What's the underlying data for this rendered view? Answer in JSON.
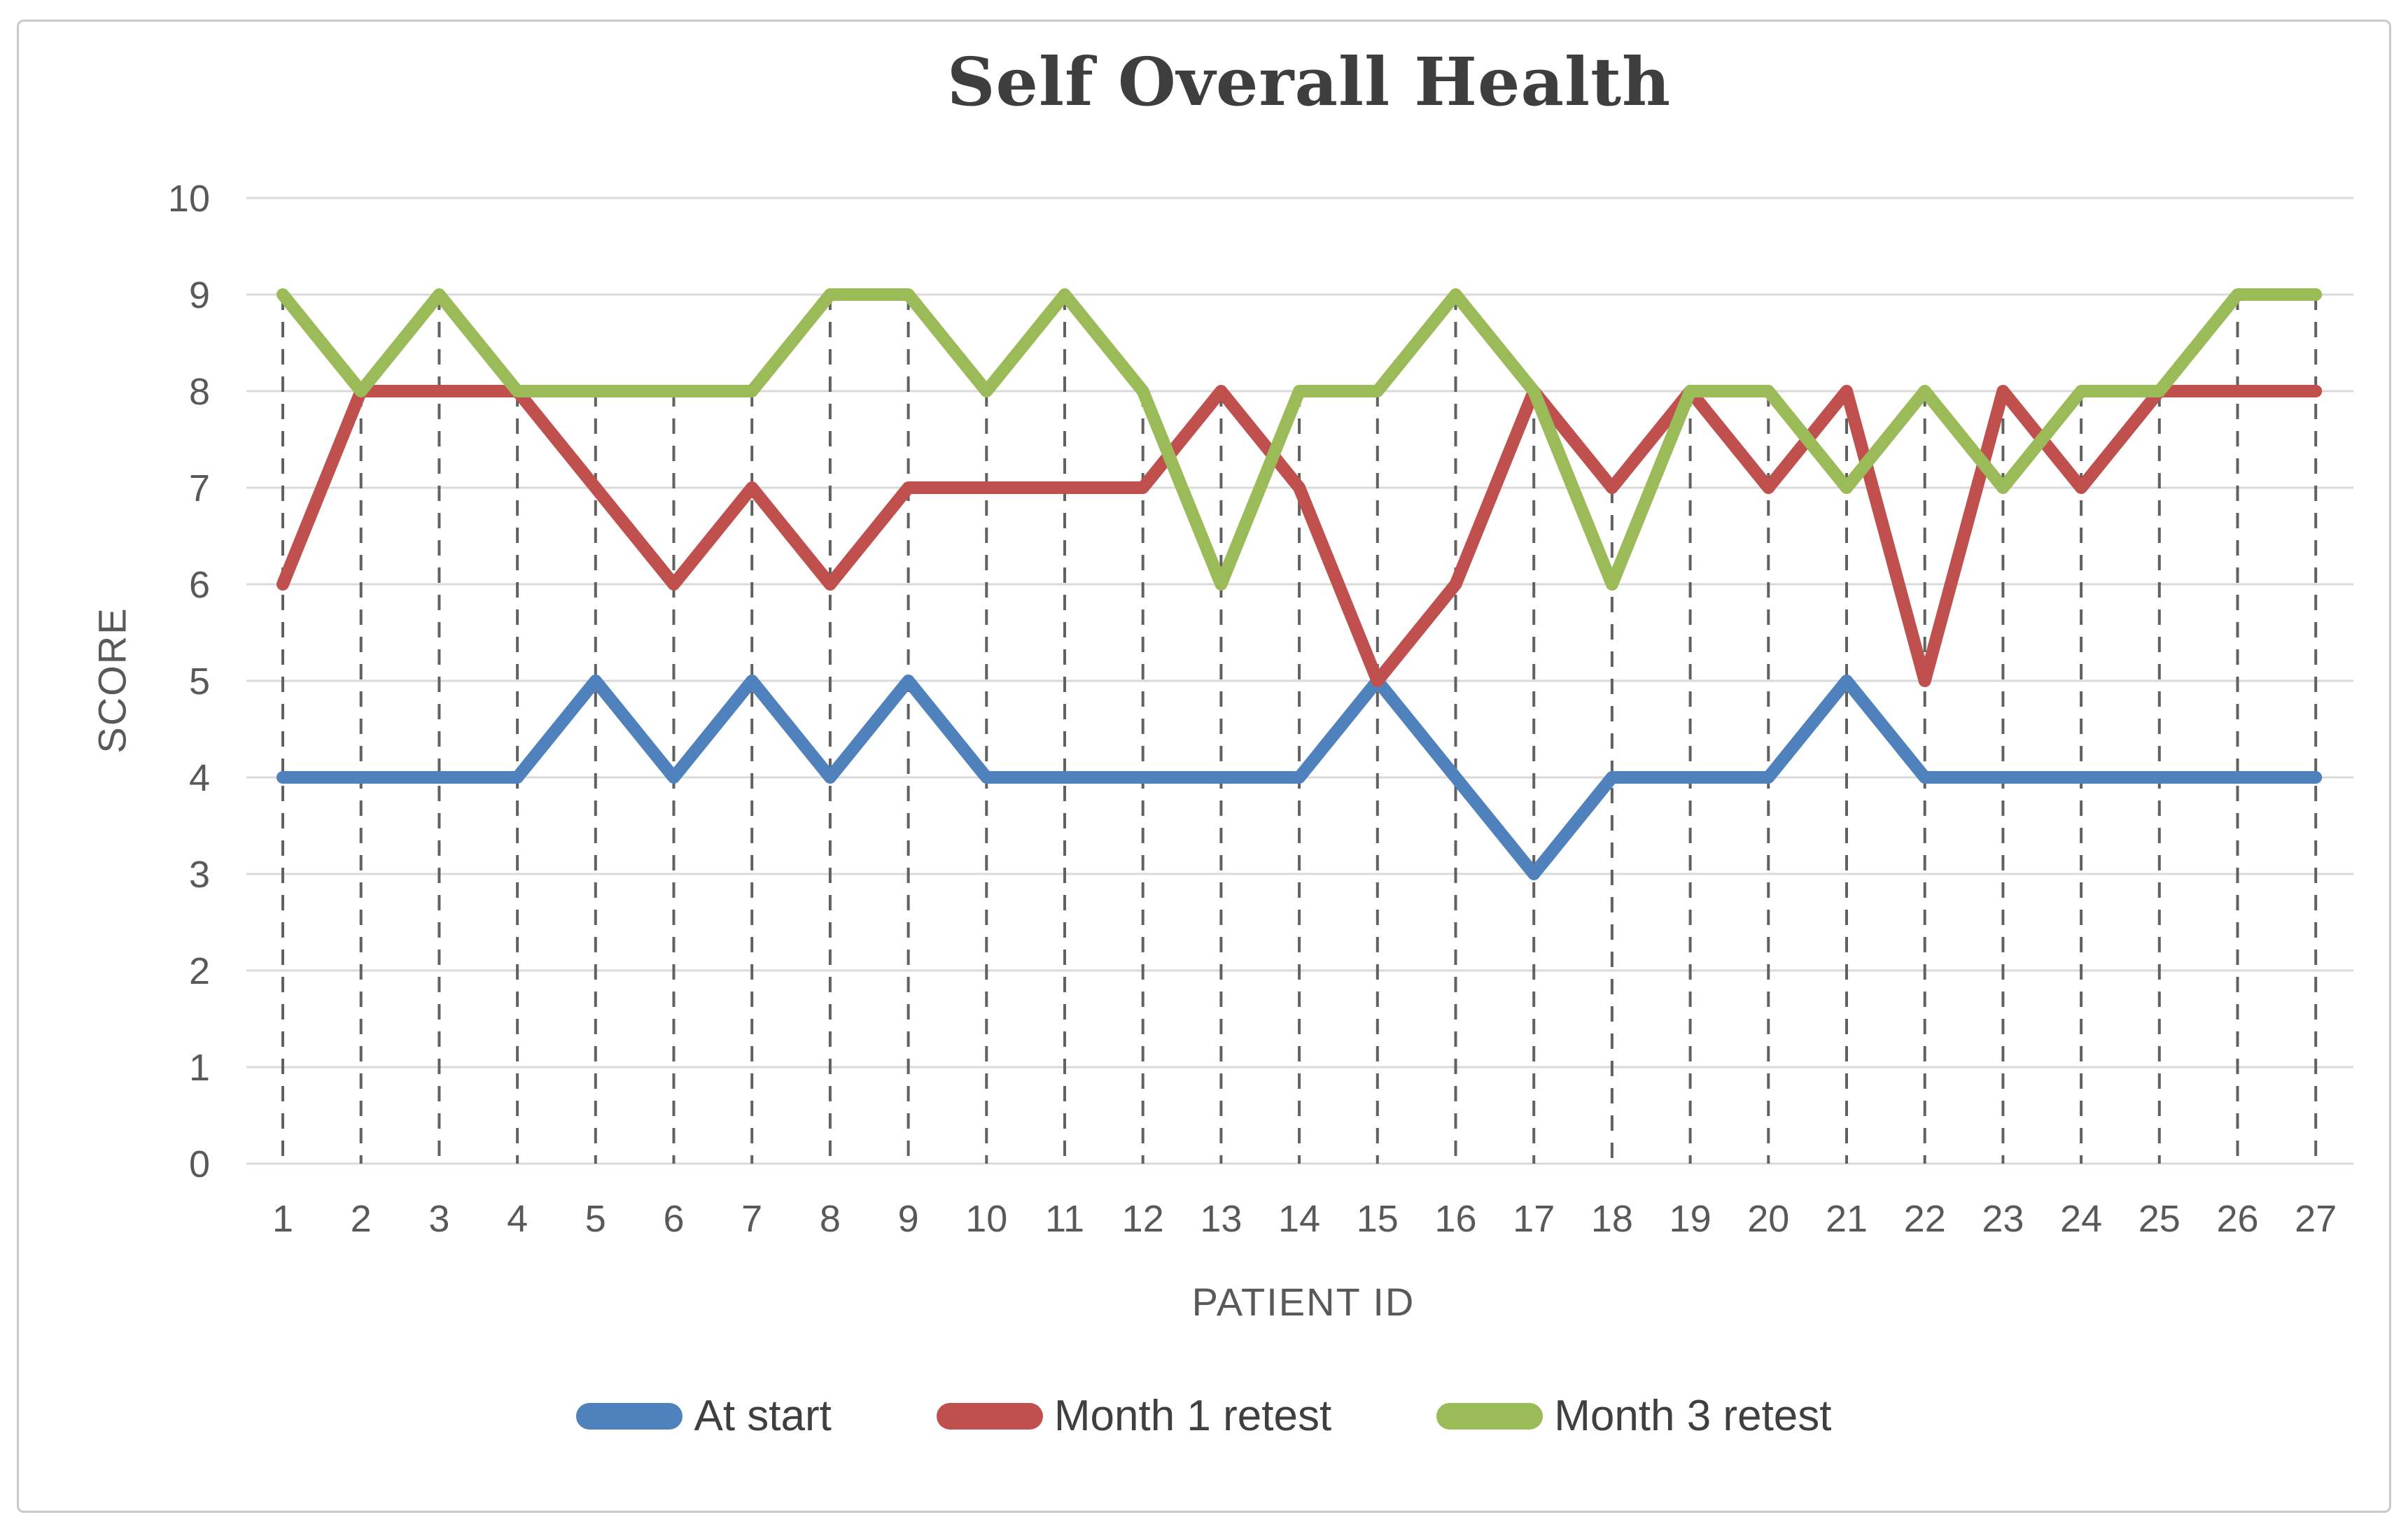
{
  "chart_data": {
    "type": "line",
    "title": "Self Overall Health",
    "xlabel": "PATIENT ID",
    "ylabel": "SCORE",
    "categories": [
      "1",
      "2",
      "3",
      "4",
      "5",
      "6",
      "7",
      "8",
      "9",
      "10",
      "11",
      "12",
      "13",
      "14",
      "15",
      "16",
      "17",
      "18",
      "19",
      "20",
      "21",
      "22",
      "23",
      "24",
      "25",
      "26",
      "27"
    ],
    "ylim": [
      0,
      10
    ],
    "ytick_step": 1,
    "grid": "horizontal-light-gray",
    "droplines": "dashed-vertical-from-top-point-to-axis",
    "legend_position": "bottom",
    "series": [
      {
        "name": "At start",
        "color": "#4F81BD",
        "values": [
          4,
          4,
          4,
          4,
          5,
          4,
          5,
          4,
          5,
          4,
          4,
          4,
          4,
          4,
          5,
          4,
          3,
          4,
          4,
          4,
          5,
          4,
          4,
          4,
          4,
          4,
          4
        ]
      },
      {
        "name": "Month 1 retest",
        "color": "#C0504D",
        "values": [
          6,
          8,
          8,
          8,
          7,
          6,
          7,
          6,
          7,
          7,
          7,
          7,
          8,
          7,
          5,
          6,
          8,
          7,
          8,
          7,
          8,
          5,
          8,
          7,
          8,
          8,
          8
        ]
      },
      {
        "name": "Month 3 retest",
        "color": "#9BBB59",
        "values": [
          9,
          8,
          9,
          8,
          8,
          8,
          8,
          9,
          9,
          8,
          9,
          8,
          6,
          8,
          8,
          9,
          8,
          6,
          8,
          8,
          7,
          8,
          7,
          8,
          8,
          9,
          9
        ]
      }
    ],
    "colors": {
      "gridline": "#d9d9d9",
      "dropline": "#616161",
      "tick_label": "#595959",
      "title_text": "#3e3e3e",
      "frame_border": "#c9c9c9"
    }
  }
}
